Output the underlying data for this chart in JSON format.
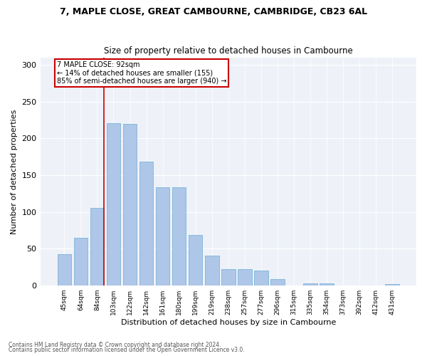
{
  "title1": "7, MAPLE CLOSE, GREAT CAMBOURNE, CAMBRIDGE, CB23 6AL",
  "title2": "Size of property relative to detached houses in Cambourne",
  "xlabel": "Distribution of detached houses by size in Cambourne",
  "ylabel": "Number of detached properties",
  "categories": [
    "45sqm",
    "64sqm",
    "84sqm",
    "103sqm",
    "122sqm",
    "142sqm",
    "161sqm",
    "180sqm",
    "199sqm",
    "219sqm",
    "238sqm",
    "257sqm",
    "277sqm",
    "296sqm",
    "315sqm",
    "335sqm",
    "354sqm",
    "373sqm",
    "392sqm",
    "412sqm",
    "431sqm"
  ],
  "values": [
    42,
    65,
    105,
    221,
    220,
    168,
    134,
    134,
    69,
    40,
    22,
    22,
    20,
    8,
    0,
    3,
    3,
    0,
    0,
    0,
    2
  ],
  "bar_color": "#aec6e8",
  "bar_edge_color": "#6aadd5",
  "property_line_label": "7 MAPLE CLOSE: 92sqm",
  "annotation_line1": "← 14% of detached houses are smaller (155)",
  "annotation_line2": "85% of semi-detached houses are larger (940) →",
  "annotation_box_color": "#ffffff",
  "annotation_box_edge_color": "#cc0000",
  "property_line_color": "#cc0000",
  "ylim": [
    0,
    310
  ],
  "yticks": [
    0,
    50,
    100,
    150,
    200,
    250,
    300
  ],
  "background_color": "#eef2f8",
  "footer1": "Contains HM Land Registry data © Crown copyright and database right 2024.",
  "footer2": "Contains public sector information licensed under the Open Government Licence v3.0."
}
